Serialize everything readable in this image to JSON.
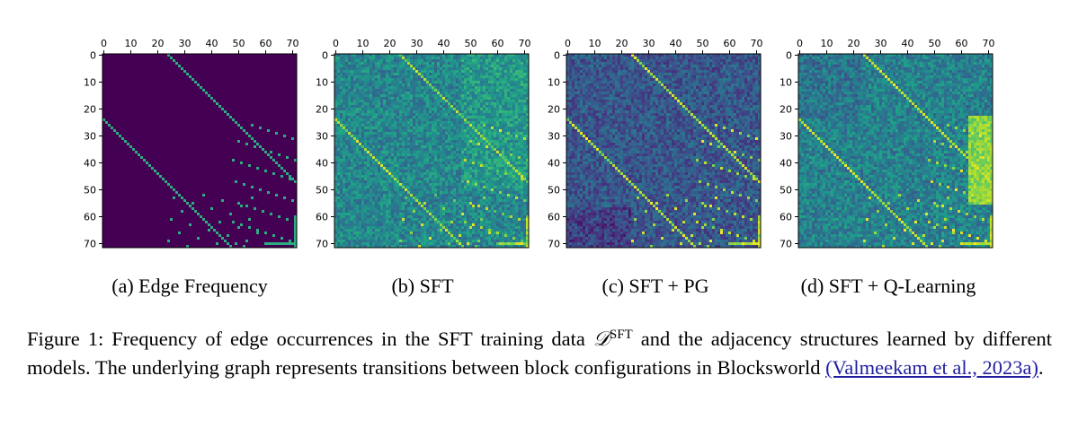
{
  "figure": {
    "panels": [
      {
        "id": "a",
        "caption": "(a) Edge Frequency",
        "style": "binary"
      },
      {
        "id": "b",
        "caption": "(b) SFT",
        "style": "sft"
      },
      {
        "id": "c",
        "caption": "(c) SFT + PG",
        "style": "pg"
      },
      {
        "id": "d",
        "caption": "(d) SFT + Q-Learning",
        "style": "ql"
      }
    ],
    "x_ticks": [
      "0",
      "10",
      "20",
      "30",
      "40",
      "50",
      "60",
      "70"
    ],
    "y_ticks": [
      "0",
      "10",
      "20",
      "30",
      "40",
      "50",
      "60",
      "70"
    ],
    "colormap": "viridis",
    "colors": {
      "viridis_low": "#440154",
      "viridis_mid": "#21918c",
      "viridis_high": "#fde725"
    }
  },
  "chart_data": [
    {
      "type": "heatmap",
      "title": "(a) Edge Frequency",
      "xlim": [
        0,
        72
      ],
      "ylim": [
        0,
        72
      ],
      "x_tick_labels": [
        "0",
        "10",
        "20",
        "30",
        "40",
        "50",
        "60",
        "70"
      ],
      "y_tick_labels": [
        "0",
        "10",
        "20",
        "30",
        "40",
        "50",
        "60",
        "70"
      ]
    },
    {
      "type": "heatmap",
      "title": "(b) SFT",
      "xlim": [
        0,
        72
      ],
      "ylim": [
        0,
        72
      ],
      "x_tick_labels": [
        "0",
        "10",
        "20",
        "30",
        "40",
        "50",
        "60",
        "70"
      ],
      "y_tick_labels": [
        "0",
        "10",
        "20",
        "30",
        "40",
        "50",
        "60",
        "70"
      ]
    },
    {
      "type": "heatmap",
      "title": "(c) SFT + PG",
      "xlim": [
        0,
        72
      ],
      "ylim": [
        0,
        72
      ],
      "x_tick_labels": [
        "0",
        "10",
        "20",
        "30",
        "40",
        "50",
        "60",
        "70"
      ],
      "y_tick_labels": [
        "0",
        "10",
        "20",
        "30",
        "40",
        "50",
        "60",
        "70"
      ]
    },
    {
      "type": "heatmap",
      "title": "(d) SFT + Q-Learning",
      "xlim": [
        0,
        72
      ],
      "ylim": [
        0,
        72
      ],
      "x_tick_labels": [
        "0",
        "10",
        "20",
        "30",
        "40",
        "50",
        "60",
        "70"
      ],
      "y_tick_labels": [
        "0",
        "10",
        "20",
        "30",
        "40",
        "50",
        "60",
        "70"
      ]
    }
  ],
  "caption": {
    "part1": "Figure 1: Frequency of edge occurrences in the SFT training data ",
    "math_symbol": "𝒟",
    "superscript": "SFT",
    "part2": " and the adjacency structures learned by different models. The underlying graph represents transitions between block configurations in Blocksworld ",
    "citation": "(Valmeekam et al., 2023a)",
    "end": "."
  }
}
